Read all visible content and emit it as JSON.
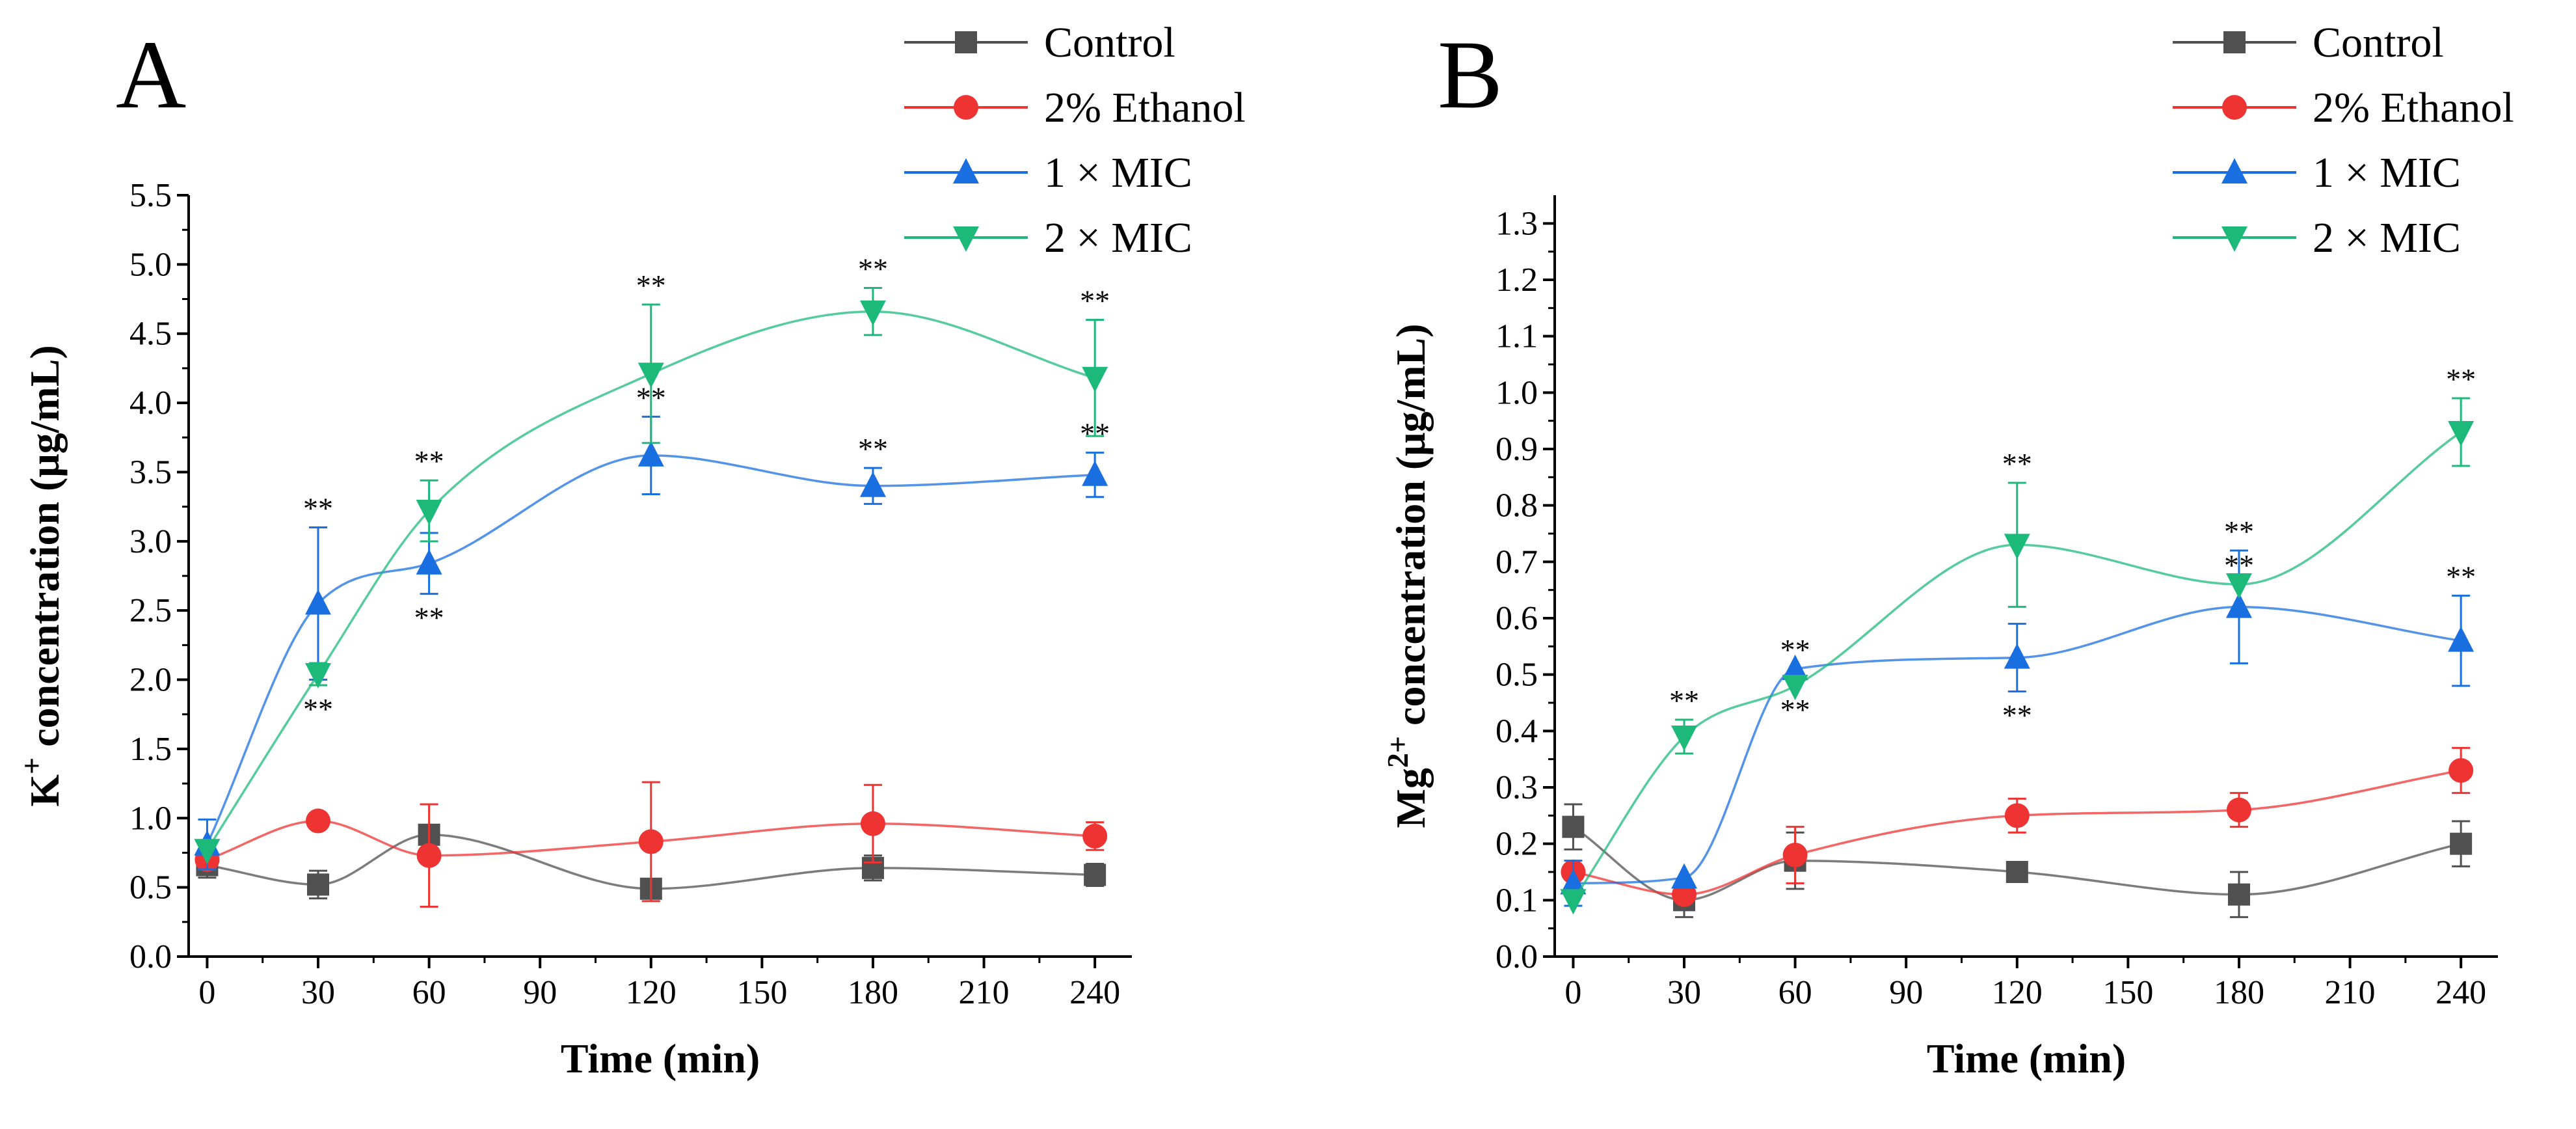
{
  "figure": {
    "panel_a_label": "A",
    "panel_b_label": "B"
  },
  "colors": {
    "Control": "#505050",
    "2% Ethanol": "#ee3333",
    "1 × MIC": "#1a6fe0",
    "2 × MIC": "#1db97a"
  },
  "chart_data": [
    {
      "type": "line",
      "panel": "A",
      "title": "",
      "xlabel": "Time (min)",
      "ylabel_main": "K",
      "ylabel_sup": "+",
      "ylabel_rest": " concentration (μg/mL)",
      "xlim": [
        -5,
        250
      ],
      "ylim": [
        0,
        5.5
      ],
      "xticks": [
        0,
        30,
        60,
        90,
        120,
        150,
        180,
        210,
        240
      ],
      "yticks": [
        0,
        0.5,
        1,
        1.5,
        2,
        2.5,
        3,
        3.5,
        4,
        4.5,
        5,
        5.5
      ],
      "ytick_labels": [
        "0.0",
        "0.5",
        "1.0",
        "1.5",
        "2.0",
        "2.5",
        "3.0",
        "3.5",
        "4.0",
        "4.5",
        "5.0",
        "5.5"
      ],
      "legend_position": "top-right",
      "significance_marker": "**",
      "x": [
        0,
        30,
        60,
        120,
        180,
        240
      ],
      "series": [
        {
          "name": "Control",
          "marker": "square",
          "values": [
            0.66,
            0.52,
            0.88,
            0.49,
            0.64,
            0.59
          ],
          "errors": [
            0.09,
            0.1,
            0.0,
            0.0,
            0.09,
            0.08
          ],
          "significant": [
            false,
            false,
            false,
            false,
            false,
            false
          ],
          "sig_offset": "above"
        },
        {
          "name": "2% Ethanol",
          "marker": "circle",
          "values": [
            0.7,
            0.98,
            0.73,
            0.83,
            0.96,
            0.87
          ],
          "errors": [
            0.0,
            0.0,
            0.37,
            0.43,
            0.28,
            0.1
          ],
          "significant": [
            false,
            false,
            false,
            false,
            false,
            false
          ],
          "sig_offset": "above"
        },
        {
          "name": "1 × MIC",
          "marker": "triangle-up",
          "values": [
            0.81,
            2.55,
            2.84,
            3.62,
            3.4,
            3.48
          ],
          "errors": [
            0.18,
            0.55,
            0.22,
            0.28,
            0.13,
            0.16
          ],
          "significant": [
            false,
            true,
            true,
            true,
            true,
            true
          ],
          "sig_offset": "above"
        },
        {
          "name": "2 × MIC",
          "marker": "triangle-down",
          "values": [
            0.77,
            2.04,
            3.22,
            4.21,
            4.66,
            4.18
          ],
          "errors": [
            0.0,
            0.08,
            0.22,
            0.5,
            0.17,
            0.42
          ],
          "significant": [
            false,
            true,
            true,
            true,
            true,
            true
          ],
          "sig_offset": "mixed"
        }
      ]
    },
    {
      "type": "line",
      "panel": "B",
      "title": "",
      "xlabel": "Time (min)",
      "ylabel_main": "Mg",
      "ylabel_sup": "2+",
      "ylabel_rest": " concentration (μg/mL)",
      "xlim": [
        -5,
        250
      ],
      "ylim": [
        0,
        1.35
      ],
      "xticks": [
        0,
        30,
        60,
        90,
        120,
        150,
        180,
        210,
        240
      ],
      "yticks": [
        0,
        0.1,
        0.2,
        0.3,
        0.4,
        0.5,
        0.6,
        0.7,
        0.8,
        0.9,
        1.0,
        1.1,
        1.2,
        1.3
      ],
      "ytick_labels": [
        "0.0",
        "0.1",
        "0.2",
        "0.3",
        "0.4",
        "0.5",
        "0.6",
        "0.7",
        "0.8",
        "0.9",
        "1.0",
        "1.1",
        "1.2",
        "1.3"
      ],
      "legend_position": "top-right",
      "significance_marker": "**",
      "x": [
        0,
        30,
        60,
        120,
        180,
        240
      ],
      "series": [
        {
          "name": "Control",
          "marker": "square",
          "values": [
            0.23,
            0.1,
            0.17,
            0.15,
            0.11,
            0.2
          ],
          "errors": [
            0.04,
            0.03,
            0.05,
            0.0,
            0.04,
            0.04
          ],
          "significant": [
            false,
            false,
            false,
            false,
            false,
            false
          ]
        },
        {
          "name": "2% Ethanol",
          "marker": "circle",
          "values": [
            0.15,
            0.11,
            0.18,
            0.25,
            0.26,
            0.33
          ],
          "errors": [
            0.0,
            0.0,
            0.05,
            0.03,
            0.03,
            0.04
          ],
          "significant": [
            false,
            false,
            false,
            false,
            false,
            false
          ]
        },
        {
          "name": "1 × MIC",
          "marker": "triangle-up",
          "values": [
            0.13,
            0.14,
            0.51,
            0.53,
            0.62,
            0.56
          ],
          "errors": [
            0.04,
            0.0,
            0.0,
            0.06,
            0.1,
            0.08
          ],
          "significant": [
            false,
            false,
            true,
            true,
            true,
            true
          ]
        },
        {
          "name": "2 × MIC",
          "marker": "triangle-down",
          "values": [
            0.1,
            0.39,
            0.48,
            0.73,
            0.66,
            0.93
          ],
          "errors": [
            0.0,
            0.03,
            0.0,
            0.11,
            0.0,
            0.06
          ],
          "significant": [
            false,
            true,
            true,
            true,
            true,
            true
          ]
        }
      ]
    }
  ]
}
